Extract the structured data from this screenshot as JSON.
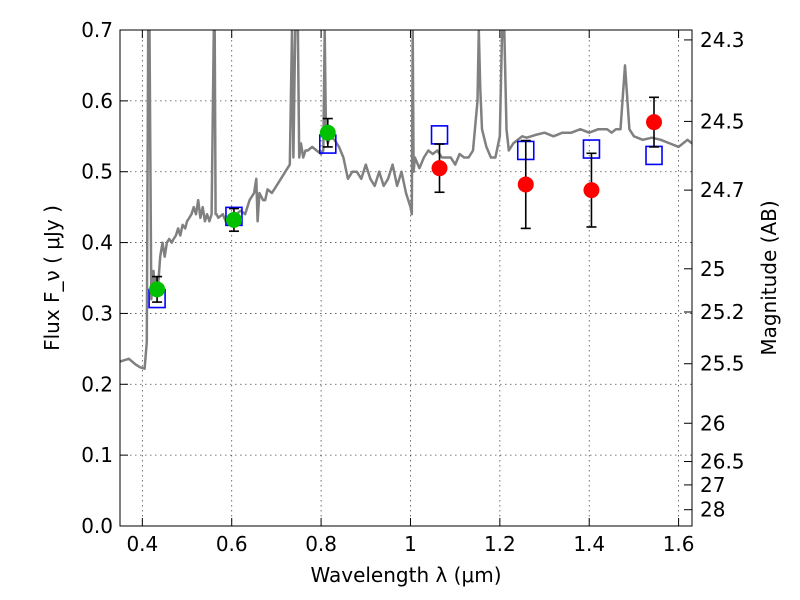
{
  "chart_data": {
    "type": "line",
    "title": "",
    "xlabel": "Wavelength  λ (μm)",
    "ylabel": "Flux  F_ν  ( μJy )",
    "y2label": "Magnitude (AB)",
    "xlim": [
      0.35,
      1.63
    ],
    "ylim": [
      0.0,
      0.7
    ],
    "grid": true,
    "xticks": [
      0.4,
      0.6,
      0.8,
      1.0,
      1.2,
      1.4,
      1.6
    ],
    "xtick_labels": [
      "0.4",
      "0.6",
      "0.8",
      "1",
      "1.2",
      "1.4",
      "1.6"
    ],
    "yticks": [
      0.0,
      0.1,
      0.2,
      0.3,
      0.4,
      0.5,
      0.6,
      0.7
    ],
    "ytick_labels": [
      "0.0",
      "0.1",
      "0.2",
      "0.3",
      "0.4",
      "0.5",
      "0.6",
      "0.7"
    ],
    "y2ticks": [
      {
        "flux": 0.686,
        "label": "24.3"
      },
      {
        "flux": 0.571,
        "label": "24.5"
      },
      {
        "flux": 0.474,
        "label": "24.7"
      },
      {
        "flux": 0.363,
        "label": "25"
      },
      {
        "flux": 0.302,
        "label": "25.2"
      },
      {
        "flux": 0.229,
        "label": "25.5"
      },
      {
        "flux": 0.145,
        "label": "26"
      },
      {
        "flux": 0.091,
        "label": "26.5"
      },
      {
        "flux": 0.058,
        "label": "27"
      },
      {
        "flux": 0.023,
        "label": "28"
      }
    ],
    "series": [
      {
        "kind": "model_spectrum",
        "color": "#808080",
        "x": [
          0.35,
          0.37,
          0.385,
          0.395,
          0.405,
          0.41,
          0.413,
          0.416,
          0.42,
          0.425,
          0.428,
          0.43,
          0.436,
          0.44,
          0.445,
          0.45,
          0.455,
          0.46,
          0.466,
          0.47,
          0.475,
          0.48,
          0.485,
          0.49,
          0.496,
          0.5,
          0.505,
          0.51,
          0.515,
          0.52,
          0.525,
          0.53,
          0.535,
          0.54,
          0.545,
          0.55,
          0.555,
          0.56,
          0.562,
          0.564,
          0.566,
          0.57,
          0.58,
          0.59,
          0.6,
          0.61,
          0.62,
          0.63,
          0.64,
          0.65,
          0.655,
          0.658,
          0.662,
          0.67,
          0.675,
          0.68,
          0.69,
          0.7,
          0.71,
          0.72,
          0.73,
          0.735,
          0.738,
          0.742,
          0.748,
          0.751,
          0.755,
          0.76,
          0.765,
          0.77,
          0.78,
          0.79,
          0.8,
          0.805,
          0.808,
          0.811,
          0.815,
          0.82,
          0.83,
          0.84,
          0.85,
          0.86,
          0.87,
          0.88,
          0.89,
          0.9,
          0.91,
          0.92,
          0.93,
          0.94,
          0.95,
          0.96,
          0.97,
          0.98,
          0.99,
          1.0,
          1.003,
          1.005,
          1.007,
          1.01,
          1.02,
          1.03,
          1.04,
          1.05,
          1.06,
          1.07,
          1.08,
          1.09,
          1.1,
          1.11,
          1.12,
          1.13,
          1.14,
          1.15,
          1.153,
          1.156,
          1.16,
          1.17,
          1.18,
          1.19,
          1.2,
          1.205,
          1.21,
          1.215,
          1.22,
          1.23,
          1.24,
          1.25,
          1.26,
          1.28,
          1.3,
          1.32,
          1.34,
          1.36,
          1.38,
          1.4,
          1.42,
          1.44,
          1.45,
          1.46,
          1.47,
          1.48,
          1.49,
          1.5,
          1.52,
          1.54,
          1.56,
          1.58,
          1.6,
          1.62,
          1.63
        ],
        "y": [
          0.232,
          0.236,
          0.228,
          0.224,
          0.222,
          0.26,
          0.7,
          0.7,
          0.32,
          0.36,
          0.33,
          0.35,
          0.345,
          0.38,
          0.4,
          0.38,
          0.4,
          0.405,
          0.4,
          0.405,
          0.41,
          0.42,
          0.41,
          0.425,
          0.42,
          0.43,
          0.435,
          0.44,
          0.45,
          0.44,
          0.46,
          0.435,
          0.45,
          0.43,
          0.44,
          0.43,
          0.44,
          0.7,
          0.7,
          0.44,
          0.44,
          0.435,
          0.44,
          0.425,
          0.435,
          0.44,
          0.445,
          0.44,
          0.46,
          0.47,
          0.49,
          0.43,
          0.47,
          0.46,
          0.46,
          0.475,
          0.47,
          0.48,
          0.49,
          0.5,
          0.51,
          0.7,
          0.52,
          0.7,
          0.7,
          0.52,
          0.54,
          0.52,
          0.53,
          0.53,
          0.535,
          0.53,
          0.525,
          0.53,
          0.7,
          0.55,
          0.54,
          0.55,
          0.545,
          0.535,
          0.52,
          0.49,
          0.5,
          0.5,
          0.49,
          0.51,
          0.49,
          0.48,
          0.5,
          0.48,
          0.49,
          0.51,
          0.48,
          0.5,
          0.47,
          0.45,
          0.44,
          0.7,
          0.5,
          0.52,
          0.505,
          0.52,
          0.53,
          0.525,
          0.53,
          0.52,
          0.52,
          0.52,
          0.51,
          0.525,
          0.52,
          0.52,
          0.53,
          0.6,
          0.7,
          0.62,
          0.56,
          0.535,
          0.52,
          0.52,
          0.55,
          0.7,
          0.7,
          0.56,
          0.53,
          0.54,
          0.545,
          0.55,
          0.548,
          0.552,
          0.555,
          0.55,
          0.555,
          0.555,
          0.56,
          0.555,
          0.56,
          0.56,
          0.555,
          0.56,
          0.56,
          0.65,
          0.56,
          0.55,
          0.545,
          0.548,
          0.545,
          0.54,
          0.535,
          0.545,
          0.54
        ]
      },
      {
        "kind": "model_photometry",
        "marker": "open-square",
        "color": "#0000ff",
        "x": [
          0.433,
          0.605,
          0.815,
          1.065,
          1.258,
          1.405,
          1.545
        ],
        "y": [
          0.321,
          0.437,
          0.539,
          0.552,
          0.53,
          0.532,
          0.523
        ]
      },
      {
        "kind": "observed_photometry",
        "marker": "filled-circle",
        "color": "#00c000",
        "x": [
          0.433,
          0.605,
          0.815
        ],
        "y": [
          0.334,
          0.432,
          0.555
        ],
        "yerr": [
          0.018,
          0.016,
          0.02
        ]
      },
      {
        "kind": "observed_photometry",
        "marker": "filled-circle",
        "color": "#ff0000",
        "x": [
          1.065,
          1.258,
          1.405,
          1.545
        ],
        "y": [
          0.505,
          0.482,
          0.474,
          0.57
        ],
        "yerr": [
          0.034,
          0.062,
          0.052,
          0.035
        ]
      }
    ]
  }
}
